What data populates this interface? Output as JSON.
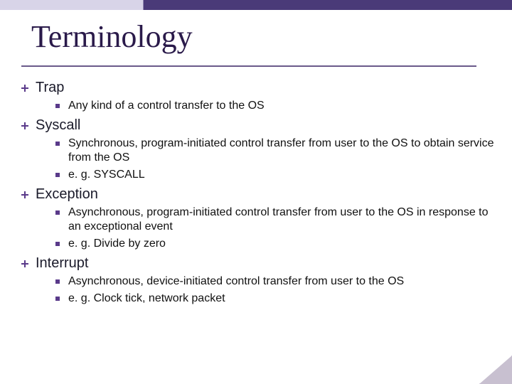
{
  "title": "Terminology",
  "colors": {
    "accent": "#5a3a8a",
    "title": "#2a1a4a",
    "rule": "#6a5a8a",
    "topbar_light": "#d8d4e8",
    "topbar_dark": "#4a3a78",
    "corner": "#c8c0d0",
    "background": "#ffffff"
  },
  "typography": {
    "title_font": "Times New Roman",
    "title_size_pt": 33,
    "lvl1_font": "Comic Sans MS",
    "lvl1_size_pt": 15,
    "lvl2_font": "Arial",
    "lvl2_size_pt": 12
  },
  "items": [
    {
      "label": "Trap",
      "sub": [
        "Any kind of a control transfer to the OS"
      ]
    },
    {
      "label": "Syscall",
      "sub": [
        "Synchronous, program-initiated control transfer from user to the OS to obtain service from the OS",
        "e. g. SYSCALL"
      ]
    },
    {
      "label": "Exception",
      "sub": [
        "Asynchronous, program-initiated control transfer from user to the OS in response to an exceptional event",
        "e. g. Divide by zero"
      ]
    },
    {
      "label": "Interrupt",
      "sub": [
        "Asynchronous, device-initiated control transfer from user to the OS",
        "e. g. Clock tick, network packet"
      ]
    }
  ]
}
